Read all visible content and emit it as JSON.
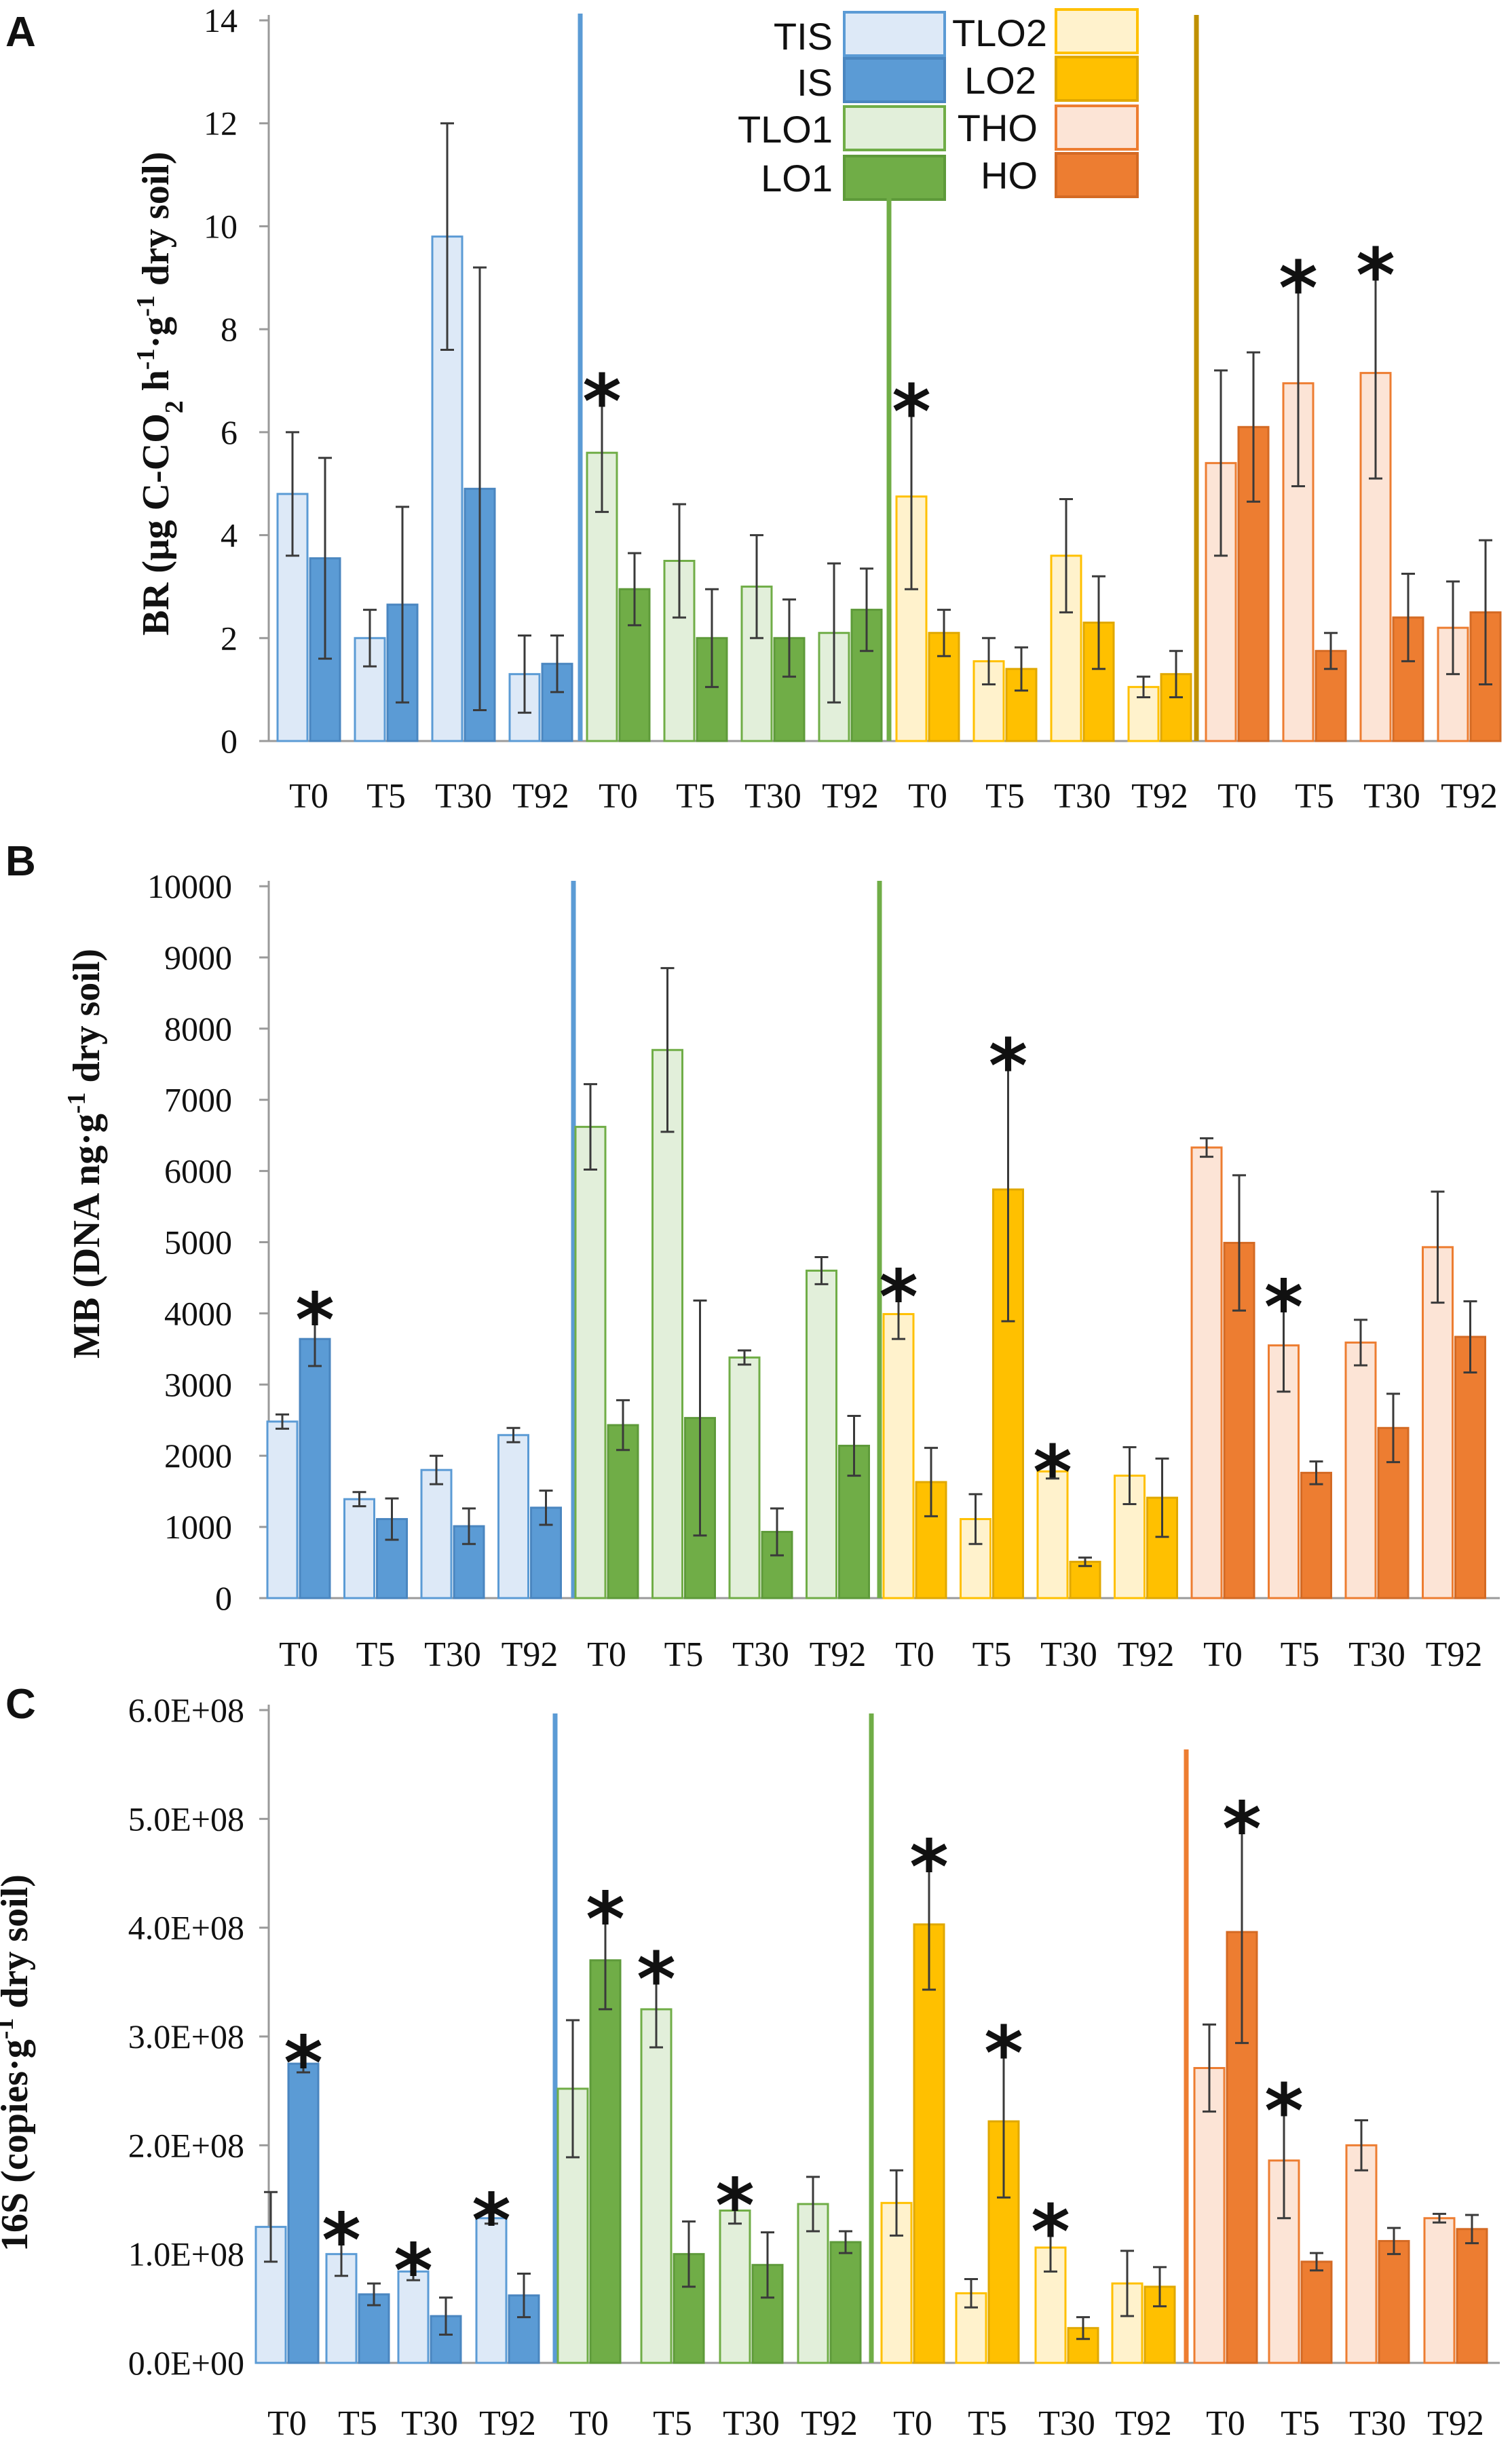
{
  "colors": {
    "TIS": {
      "fill": "#dde9f7",
      "stroke": "#5b9bd5"
    },
    "IS": {
      "fill": "#5b9bd5",
      "stroke": "#4a86c0"
    },
    "TLO1": {
      "fill": "#e2efda",
      "stroke": "#70ad47"
    },
    "LO1": {
      "fill": "#70ad47",
      "stroke": "#5e9a3a"
    },
    "TLO2": {
      "fill": "#fff2cc",
      "stroke": "#ffc000"
    },
    "LO2": {
      "fill": "#ffc000",
      "stroke": "#e0a800"
    },
    "THO": {
      "fill": "#fce4d6",
      "stroke": "#ed7d31"
    },
    "HO": {
      "fill": "#ed7d31",
      "stroke": "#d46a24"
    },
    "divider_blue": "#5b9bd5",
    "divider_green": "#70ad47",
    "divider_gold": "#bf9000",
    "divider_orange": "#ed7d31",
    "star_blue": "#5b9bd5",
    "star_green": "#70ad47",
    "star_gold": "#bf9000",
    "star_yellow": "#ffc000",
    "star_orange": "#ed7d31"
  },
  "chart_data": [
    {
      "type": "bar",
      "panel": "A",
      "ylabel_main": "BR (μg C-CO",
      "ylabel_sub": "2",
      "ylabel_rest": " h",
      "ylabel_sup1": "-1",
      "ylabel_dot": "·g",
      "ylabel_sup2": "-1",
      "ylabel_end": " dry soil)",
      "ylim": [
        0,
        14
      ],
      "yticks": [
        "0",
        "2",
        "4",
        "6",
        "8",
        "10",
        "12",
        "14"
      ],
      "yticks_values": [
        0,
        2,
        4,
        6,
        8,
        10,
        12,
        14
      ],
      "categories": [
        "T0",
        "T5",
        "T30",
        "T92",
        "T0",
        "T5",
        "T30",
        "T92",
        "T0",
        "T5",
        "T30",
        "T92",
        "T0",
        "T5",
        "T30",
        "T92"
      ],
      "legend": [
        {
          "label": "TIS",
          "key": "TIS"
        },
        {
          "label": "IS",
          "key": "IS"
        },
        {
          "label": "TLO1",
          "key": "TLO1"
        },
        {
          "label": "LO1",
          "key": "LO1"
        },
        {
          "label": "TLO2",
          "key": "TLO2"
        },
        {
          "label": "LO2",
          "key": "LO2"
        },
        {
          "label": "THO",
          "key": "THO"
        },
        {
          "label": "HO",
          "key": "HO"
        }
      ],
      "groups": [
        {
          "treated": "TIS",
          "untreated": "IS",
          "treated_values": [
            4.8,
            2.0,
            9.8,
            1.3
          ],
          "treated_err": [
            1.2,
            0.55,
            2.2,
            0.75
          ],
          "untreated_values": [
            3.55,
            2.65,
            4.9,
            1.5
          ],
          "untreated_err": [
            1.95,
            1.9,
            4.3,
            0.55
          ],
          "stars": [],
          "divider_color": "divider_blue"
        },
        {
          "treated": "TLO1",
          "untreated": "LO1",
          "treated_values": [
            5.6,
            3.5,
            3.0,
            2.1
          ],
          "treated_err": [
            1.15,
            1.1,
            1.0,
            1.35
          ],
          "untreated_values": [
            2.95,
            2.0,
            2.0,
            2.55
          ],
          "untreated_err": [
            0.7,
            0.95,
            0.75,
            0.8
          ],
          "stars": [
            {
              "cat": 0,
              "glyph": "*",
              "color": "star_green"
            }
          ],
          "divider_color": "divider_green"
        },
        {
          "treated": "TLO2",
          "untreated": "LO2",
          "treated_values": [
            4.75,
            1.55,
            3.6,
            1.05
          ],
          "treated_err": [
            1.8,
            0.45,
            1.1,
            0.2
          ],
          "untreated_values": [
            2.1,
            1.4,
            2.3,
            1.3
          ],
          "untreated_err": [
            0.45,
            0.42,
            0.9,
            0.45
          ],
          "stars": [
            {
              "cat": 0,
              "glyph": "*",
              "color": "star_gold"
            }
          ],
          "divider_color": "divider_gold"
        },
        {
          "treated": "THO",
          "untreated": "HO",
          "treated_values": [
            5.4,
            6.95,
            7.15,
            2.2
          ],
          "treated_err": [
            1.8,
            2.0,
            2.05,
            0.9
          ],
          "untreated_values": [
            6.1,
            1.75,
            2.4,
            2.5
          ],
          "untreated_err": [
            1.45,
            0.35,
            0.85,
            1.4
          ],
          "stars": [
            {
              "cat": 1,
              "glyph": "*",
              "color": "star_orange"
            },
            {
              "cat": 2,
              "glyph": "*",
              "color": "star_orange"
            }
          ],
          "divider_color": null
        }
      ]
    },
    {
      "type": "bar",
      "panel": "B",
      "ylabel_main": "MB (DNA ng·g",
      "ylabel_sup1": "-1",
      "ylabel_end": " dry soil)",
      "ylim": [
        0,
        10000
      ],
      "yticks": [
        "0",
        "1000",
        "2000",
        "3000",
        "4000",
        "5000",
        "6000",
        "7000",
        "8000",
        "9000",
        "10000"
      ],
      "yticks_values": [
        0,
        1000,
        2000,
        3000,
        4000,
        5000,
        6000,
        7000,
        8000,
        9000,
        10000
      ],
      "categories": [
        "T0",
        "T5",
        "T30",
        "T92",
        "T0",
        "T5",
        "T30",
        "T92",
        "T0",
        "T5",
        "T30",
        "T92",
        "T0",
        "T5",
        "T30",
        "T92"
      ],
      "groups": [
        {
          "treated": "TIS",
          "untreated": "IS",
          "treated_values": [
            2480,
            1390,
            1800,
            2290
          ],
          "treated_err": [
            100,
            100,
            200,
            100
          ],
          "untreated_values": [
            3640,
            1110,
            1010,
            1270
          ],
          "untreated_err": [
            380,
            290,
            250,
            240
          ],
          "stars": [
            {
              "cat": 0,
              "glyph": "*",
              "color": "star_blue"
            }
          ],
          "divider_color": "divider_blue"
        },
        {
          "treated": "TLO1",
          "untreated": "LO1",
          "treated_values": [
            6620,
            7700,
            3380,
            4600
          ],
          "treated_err": [
            600,
            1150,
            100,
            190
          ],
          "untreated_values": [
            2430,
            2530,
            930,
            2140
          ],
          "untreated_err": [
            350,
            1650,
            330,
            420
          ],
          "stars": [],
          "divider_color": "divider_green"
        },
        {
          "treated": "TLO2",
          "untreated": "LO2",
          "treated_values": [
            3990,
            1110,
            1780,
            1720
          ],
          "treated_err": [
            350,
            350,
            100,
            400
          ],
          "untreated_values": [
            1630,
            5740,
            510,
            1410
          ],
          "untreated_err": [
            480,
            1850,
            60,
            550
          ],
          "stars": [
            {
              "cat": 0,
              "glyph": "*",
              "color": "star_gold"
            },
            {
              "cat": 1,
              "glyph": "*",
              "color": "star_gold"
            },
            {
              "cat": 2,
              "glyph": "*",
              "color": "star_gold"
            }
          ],
          "divider_color": "divider_gold"
        },
        {
          "treated": "THO",
          "untreated": "HO",
          "treated_values": [
            6330,
            3550,
            3590,
            4930
          ],
          "treated_err": [
            130,
            650,
            320,
            780
          ],
          "untreated_values": [
            4990,
            1760,
            2390,
            3670
          ],
          "untreated_err": [
            950,
            160,
            480,
            500
          ],
          "stars": [
            {
              "cat": 1,
              "glyph": "*",
              "color": "star_orange"
            }
          ],
          "divider_color": null
        }
      ]
    },
    {
      "type": "bar",
      "panel": "C",
      "ylabel_main": "16S (copies·g",
      "ylabel_sup1": "-1",
      "ylabel_end": " dry soil)",
      "ylim": [
        0,
        600000000
      ],
      "yticks": [
        "0.0E+00",
        "1.0E+08",
        "2.0E+08",
        "3.0E+08",
        "4.0E+08",
        "5.0E+08",
        "6.0E+08"
      ],
      "yticks_values": [
        0,
        100000000,
        200000000,
        300000000,
        400000000,
        500000000,
        600000000
      ],
      "categories": [
        "T0",
        "T5",
        "T30",
        "T92",
        "T0",
        "T5",
        "T30",
        "T92",
        "T0",
        "T5",
        "T30",
        "T92",
        "T0",
        "T5",
        "T30",
        "T92"
      ],
      "groups": [
        {
          "treated": "TIS",
          "untreated": "IS",
          "treated_values": [
            125000000,
            100000000,
            84000000,
            133000000
          ],
          "treated_err": [
            32000000,
            20000000,
            8000000,
            5000000
          ],
          "untreated_values": [
            275000000,
            63000000,
            43000000,
            62000000
          ],
          "untreated_err": [
            8000000,
            10000000,
            17000000,
            20000000
          ],
          "stars": [
            {
              "cat": 0,
              "glyph": "*",
              "color": "star_blue"
            },
            {
              "cat": 1,
              "glyph": "*",
              "color": "star_blue"
            },
            {
              "cat": 2,
              "glyph": "*",
              "color": "star_blue"
            },
            {
              "cat": 3,
              "glyph": "*",
              "color": "star_blue"
            }
          ],
          "divider_color": "divider_blue"
        },
        {
          "treated": "TLO1",
          "untreated": "LO1",
          "treated_values": [
            252000000,
            325000000,
            140000000,
            146000000
          ],
          "treated_err": [
            63000000,
            35000000,
            12000000,
            25000000
          ],
          "untreated_values": [
            370000000,
            100000000,
            90000000,
            111000000
          ],
          "untreated_err": [
            45000000,
            30000000,
            30000000,
            10000000
          ],
          "stars": [
            {
              "cat": 0,
              "glyph": "*",
              "color": "star_green"
            },
            {
              "cat": 1,
              "glyph": "*",
              "color": "star_green"
            },
            {
              "cat": 2,
              "glyph": "*",
              "color": "star_green"
            }
          ],
          "divider_color": "divider_green"
        },
        {
          "treated": "TLO2",
          "untreated": "LO2",
          "treated_values": [
            147000000,
            64000000,
            106000000,
            73000000
          ],
          "treated_err": [
            30000000,
            13000000,
            22000000,
            30000000
          ],
          "untreated_values": [
            403000000,
            222000000,
            32000000,
            70000000
          ],
          "untreated_err": [
            60000000,
            70000000,
            10000000,
            18000000
          ],
          "stars": [
            {
              "cat": 0,
              "glyph": "*",
              "color": "star_yellow"
            },
            {
              "cat": 1,
              "glyph": "*",
              "color": "star_yellow"
            },
            {
              "cat": 2,
              "glyph": "*",
              "color": "star_yellow"
            }
          ],
          "divider_color": "divider_orange"
        },
        {
          "treated": "THO",
          "untreated": "HO",
          "treated_values": [
            271000000,
            186000000,
            200000000,
            133000000
          ],
          "treated_err": [
            40000000,
            53000000,
            23000000,
            4000000
          ],
          "untreated_values": [
            396000000,
            93000000,
            112000000,
            123000000
          ],
          "untreated_err": [
            102000000,
            8000000,
            12000000,
            13000000
          ],
          "stars": [
            {
              "cat": 0,
              "glyph": "*",
              "color": "star_orange"
            },
            {
              "cat": 1,
              "glyph": "*",
              "color": "star_orange"
            }
          ],
          "divider_color": null
        }
      ]
    }
  ]
}
